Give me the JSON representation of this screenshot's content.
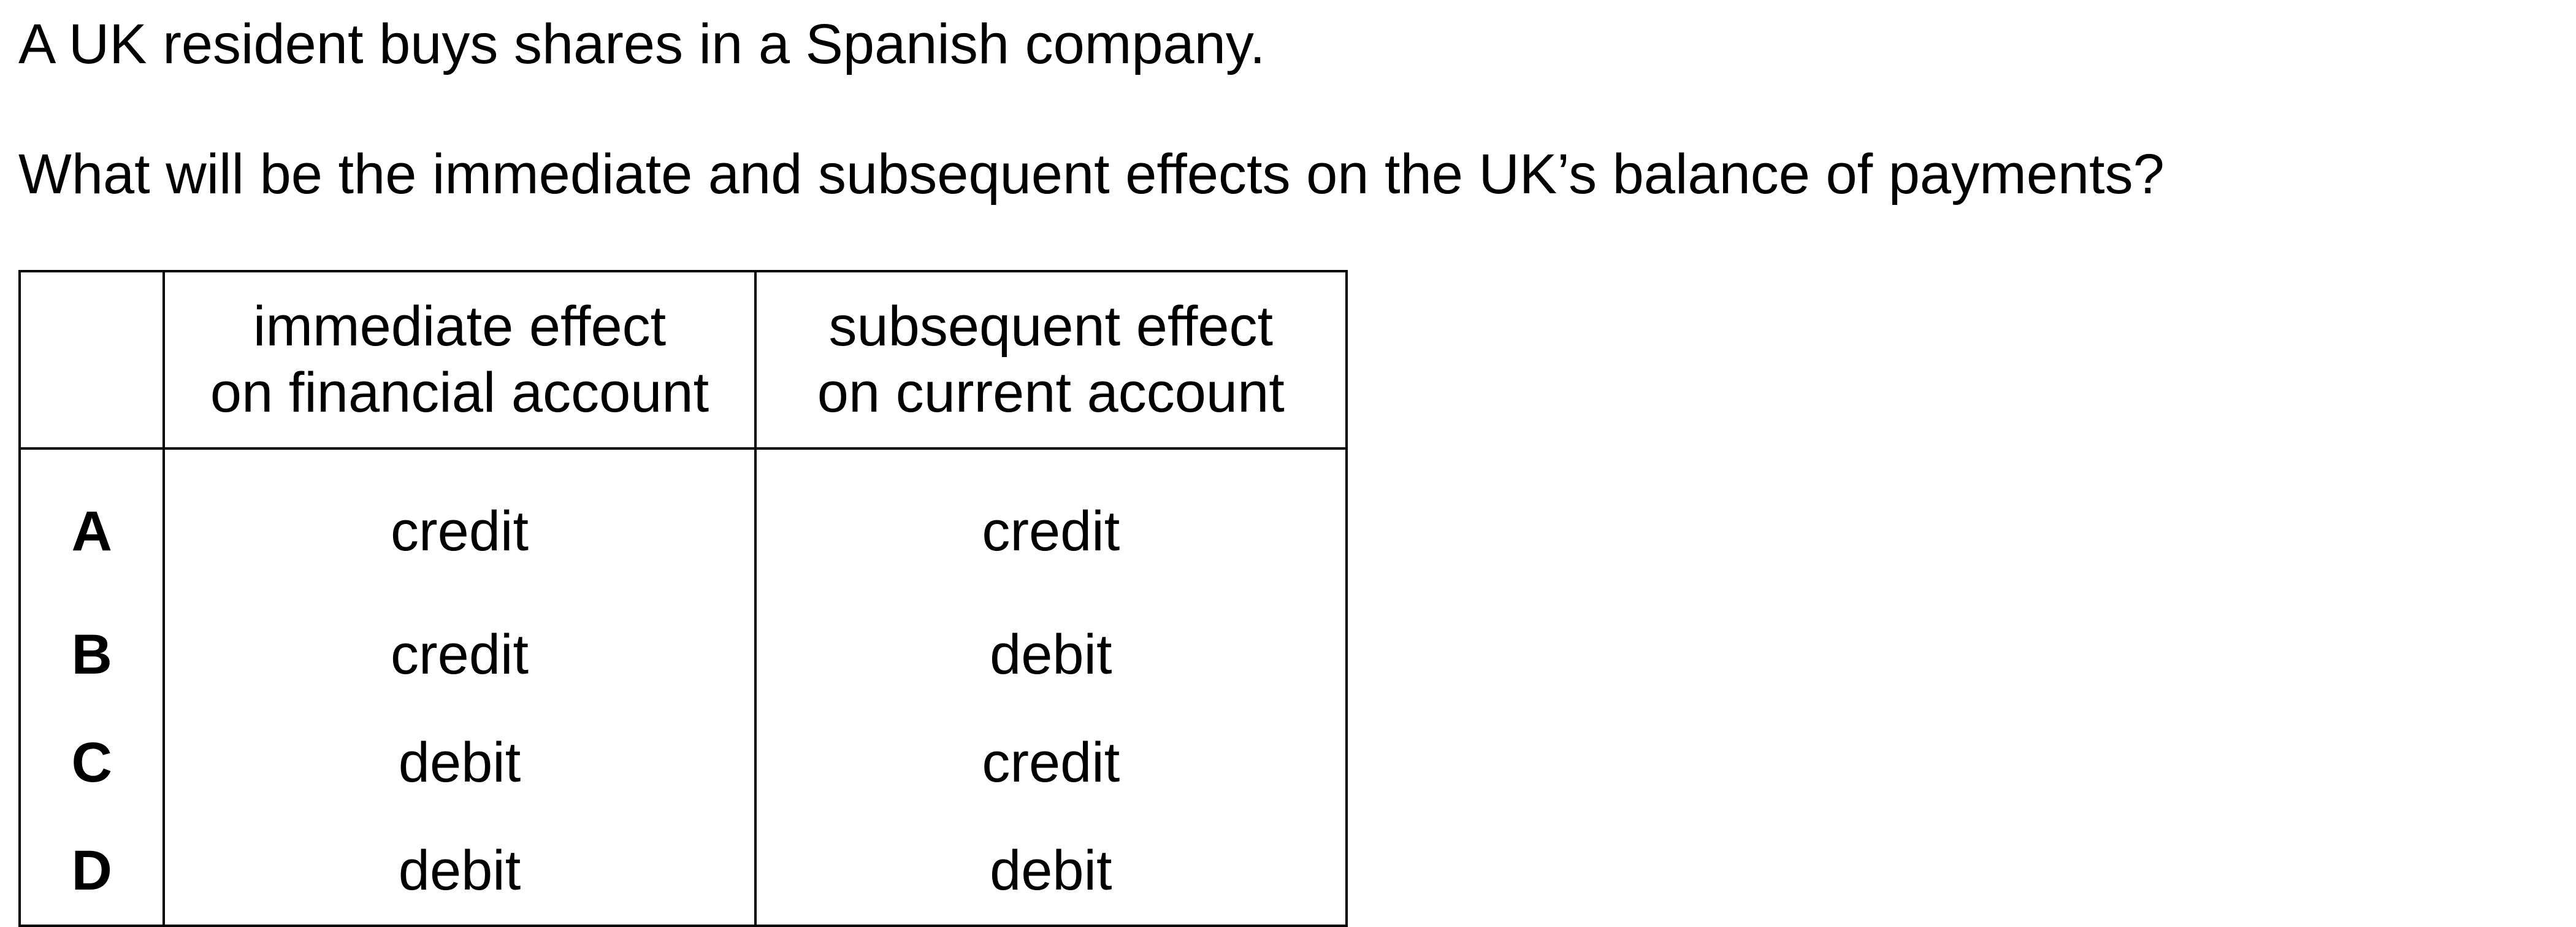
{
  "question": {
    "intro": "A UK resident buys shares in a Spanish company.",
    "prompt": "What will be the immediate and subsequent effects on the UK’s balance of payments?"
  },
  "table": {
    "header": {
      "label": "",
      "immediate_line1": "immediate effect",
      "immediate_line2": "on financial account",
      "subsequent_line1": "subsequent effect",
      "subsequent_line2": "on current account"
    },
    "rows": [
      {
        "option": "A",
        "immediate": "credit",
        "subsequent": "credit"
      },
      {
        "option": "B",
        "immediate": "credit",
        "subsequent": "debit"
      },
      {
        "option": "C",
        "immediate": "debit",
        "subsequent": "credit"
      },
      {
        "option": "D",
        "immediate": "debit",
        "subsequent": "debit"
      }
    ]
  }
}
